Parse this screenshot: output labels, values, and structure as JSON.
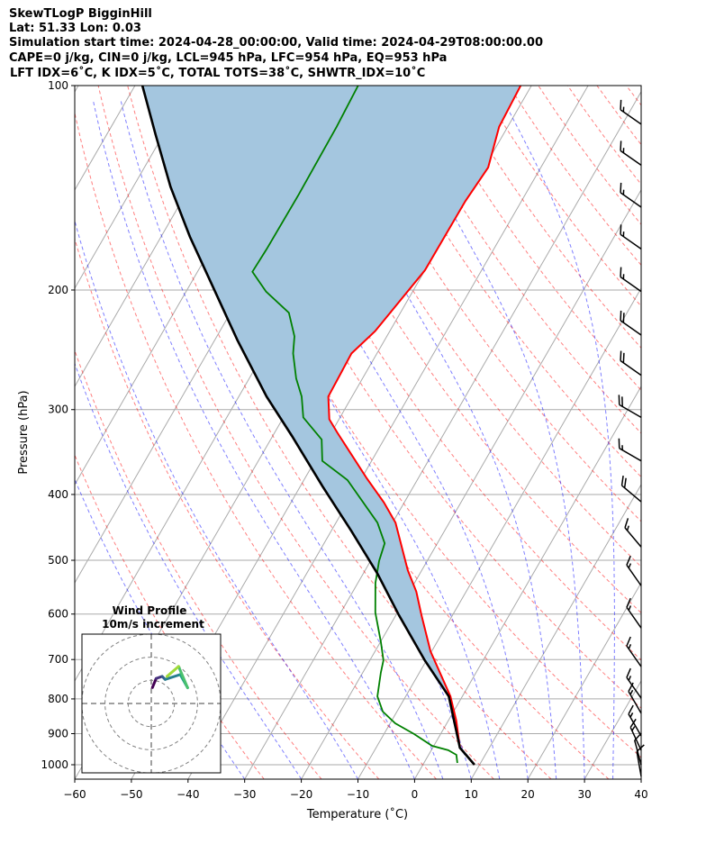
{
  "chart_data": {
    "type": "skewt",
    "title_lines": [
      "SkewTLogP BigginHill",
      "Lat: 51.33   Lon: 0.03",
      "Simulation start time: 2024-04-28_00:00:00, Valid time: 2024-04-29T08:00:00.00",
      "CAPE=0 j/kg, CIN=0 j/kg, LCL=945 hPa, LFC=954 hPa, EQ=953 hPa",
      "LFT IDX=6˚C, K IDX=5˚C, TOTAL TOTS=38˚C, SHWTR_IDX=10˚C"
    ],
    "xlabel": "Temperature (˚C)",
    "ylabel": "Pressure (hPa)",
    "xlim": [
      -60,
      40
    ],
    "ylim": [
      1050,
      100
    ],
    "xticks": [
      -60,
      -50,
      -40,
      -30,
      -20,
      -10,
      0,
      10,
      20,
      30,
      40
    ],
    "xtick_labels": [
      "−60",
      "−50",
      "−40",
      "−30",
      "−20",
      "−10",
      "0",
      "10",
      "20",
      "30",
      "40"
    ],
    "yticks": [
      100,
      200,
      300,
      400,
      500,
      600,
      700,
      800,
      900,
      1000
    ],
    "ytick_labels": [
      "100",
      "200",
      "300",
      "400",
      "500",
      "600",
      "700",
      "800",
      "900",
      "1000"
    ],
    "grid": true,
    "series": [
      {
        "name": "temperature",
        "color": "#ff0000",
        "points": [
          [
            1000,
            9.1
          ],
          [
            944,
            4.8
          ],
          [
            861,
            1.4
          ],
          [
            793,
            -2.1
          ],
          [
            681,
            -10.2
          ],
          [
            602,
            -15.5
          ],
          [
            556,
            -18.8
          ],
          [
            517,
            -22.5
          ],
          [
            440,
            -29.5
          ],
          [
            411,
            -33.6
          ],
          [
            378,
            -39.2
          ],
          [
            324,
            -49.0
          ],
          [
            310,
            -51.7
          ],
          [
            287,
            -54.2
          ],
          [
            248,
            -54.5
          ],
          [
            230,
            -52.6
          ],
          [
            187,
            -50.0
          ],
          [
            148,
            -49.9
          ],
          [
            132,
            -49.3
          ],
          [
            115,
            -51.5
          ],
          [
            100,
            -51.9
          ]
        ]
      },
      {
        "name": "dewpoint",
        "color": "#008000",
        "points": [
          [
            994,
            5.9
          ],
          [
            967,
            4.9
          ],
          [
            952,
            3.0
          ],
          [
            938,
            -0.3
          ],
          [
            901,
            -4.7
          ],
          [
            869,
            -9.1
          ],
          [
            835,
            -12.5
          ],
          [
            793,
            -15.0
          ],
          [
            732,
            -16.8
          ],
          [
            702,
            -17.6
          ],
          [
            660,
            -19.9
          ],
          [
            597,
            -23.9
          ],
          [
            540,
            -26.9
          ],
          [
            501,
            -28.5
          ],
          [
            472,
            -29.3
          ],
          [
            440,
            -32.7
          ],
          [
            381,
            -42.3
          ],
          [
            357,
            -48.7
          ],
          [
            332,
            -51.0
          ],
          [
            308,
            -56.5
          ],
          [
            287,
            -58.9
          ],
          [
            270,
            -61.7
          ],
          [
            248,
            -64.8
          ],
          [
            234,
            -66.3
          ],
          [
            216,
            -69.7
          ],
          [
            201,
            -75.9
          ],
          [
            188,
            -80.3
          ],
          [
            174,
            -80.1
          ],
          [
            145,
            -80.0
          ],
          [
            115,
            -80.2
          ],
          [
            100,
            -80.6
          ]
        ]
      },
      {
        "name": "parcel",
        "color": "#000000",
        "points": [
          [
            1000,
            9.1
          ],
          [
            944,
            4.8
          ],
          [
            793,
            -2.4
          ],
          [
            702,
            -10.3
          ],
          [
            602,
            -19.5
          ],
          [
            523,
            -27.5
          ],
          [
            453,
            -36.4
          ],
          [
            389,
            -46.1
          ],
          [
            328,
            -56.6
          ],
          [
            287,
            -65.1
          ],
          [
            237,
            -76.0
          ],
          [
            201,
            -84.9
          ],
          [
            167,
            -94.9
          ],
          [
            141,
            -103.4
          ],
          [
            118,
            -111.4
          ],
          [
            100,
            -118.7
          ]
        ]
      }
    ],
    "shading": {
      "between": [
        "parcel",
        "temperature"
      ],
      "color": "#a4c6df"
    },
    "wind_barbs": [
      {
        "p": 114,
        "dir": 235,
        "speed": 15
      },
      {
        "p": 131,
        "dir": 235,
        "speed": 15
      },
      {
        "p": 151,
        "dir": 235,
        "speed": 15
      },
      {
        "p": 174,
        "dir": 235,
        "speed": 15
      },
      {
        "p": 201,
        "dir": 235,
        "speed": 15
      },
      {
        "p": 233,
        "dir": 235,
        "speed": 20
      },
      {
        "p": 267,
        "dir": 235,
        "speed": 20
      },
      {
        "p": 308,
        "dir": 240,
        "speed": 20
      },
      {
        "p": 357,
        "dir": 240,
        "speed": 15
      },
      {
        "p": 410,
        "dir": 230,
        "speed": 20
      },
      {
        "p": 478,
        "dir": 220,
        "speed": 15
      },
      {
        "p": 545,
        "dir": 215,
        "speed": 15
      },
      {
        "p": 629,
        "dir": 215,
        "speed": 15
      },
      {
        "p": 717,
        "dir": 215,
        "speed": 15
      },
      {
        "p": 798,
        "dir": 215,
        "speed": 15
      },
      {
        "p": 840,
        "dir": 210,
        "speed": 15
      },
      {
        "p": 907,
        "dir": 210,
        "speed": 15
      },
      {
        "p": 952,
        "dir": 205,
        "speed": 15
      },
      {
        "p": 1000,
        "dir": 195,
        "speed": 10
      },
      {
        "p": 1040,
        "dir": 190,
        "speed": 10
      }
    ],
    "hodograph": {
      "title": "Wind Profile",
      "subtitle": "10m/s increment",
      "ring_step_ms": 10,
      "rings": [
        10,
        20,
        30
      ],
      "points_uv": [
        [
          0.5,
          6.9
        ],
        [
          2.1,
          10.8
        ],
        [
          4.7,
          11.7
        ],
        [
          6.0,
          10.4
        ],
        [
          12.5,
          12.5
        ],
        [
          15.7,
          6.8
        ],
        [
          11.8,
          16.0
        ],
        [
          6.8,
          11.7
        ]
      ],
      "colors": [
        "#440154",
        "#46327e",
        "#365c8d",
        "#277f8e",
        "#1fa187",
        "#4ac16d",
        "#a0da39",
        "#fde725"
      ]
    }
  }
}
